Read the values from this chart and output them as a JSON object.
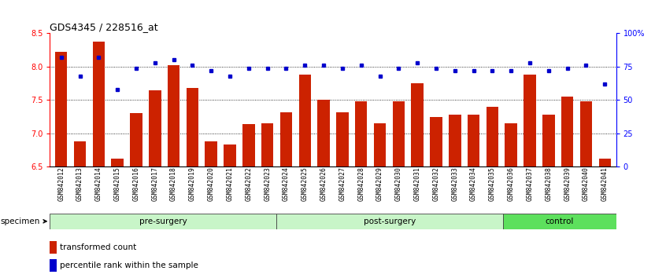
{
  "title": "GDS4345 / 228516_at",
  "samples": [
    "GSM842012",
    "GSM842013",
    "GSM842014",
    "GSM842015",
    "GSM842016",
    "GSM842017",
    "GSM842018",
    "GSM842019",
    "GSM842020",
    "GSM842021",
    "GSM842022",
    "GSM842023",
    "GSM842024",
    "GSM842025",
    "GSM842026",
    "GSM842027",
    "GSM842028",
    "GSM842029",
    "GSM842030",
    "GSM842031",
    "GSM842032",
    "GSM842033",
    "GSM842034",
    "GSM842035",
    "GSM842036",
    "GSM842037",
    "GSM842038",
    "GSM842039",
    "GSM842040",
    "GSM842041"
  ],
  "bar_values": [
    8.22,
    6.88,
    8.38,
    6.62,
    7.3,
    7.65,
    8.02,
    7.68,
    6.88,
    6.83,
    7.14,
    7.15,
    7.32,
    7.88,
    7.5,
    7.32,
    7.48,
    7.15,
    7.48,
    7.75,
    7.25,
    7.28,
    7.28,
    7.4,
    7.15,
    7.88,
    7.28,
    7.55,
    7.48,
    6.62
  ],
  "dot_values": [
    82,
    68,
    82,
    58,
    74,
    78,
    80,
    76,
    72,
    68,
    74,
    74,
    74,
    76,
    76,
    74,
    76,
    68,
    74,
    78,
    74,
    72,
    72,
    72,
    72,
    78,
    72,
    74,
    76,
    62
  ],
  "groups": [
    {
      "label": "pre-surgery",
      "start": 0,
      "end": 12
    },
    {
      "label": "post-surgery",
      "start": 12,
      "end": 24
    },
    {
      "label": "control",
      "start": 24,
      "end": 30
    }
  ],
  "group_colors": [
    "#c8f5c8",
    "#c8f5c8",
    "#5de05d"
  ],
  "bar_color": "#cc2200",
  "dot_color": "#0000cc",
  "ylim_left": [
    6.5,
    8.5
  ],
  "ylim_right": [
    0,
    100
  ],
  "yticks_left": [
    6.5,
    7.0,
    7.5,
    8.0,
    8.5
  ],
  "yticks_right": [
    0,
    25,
    50,
    75,
    100
  ],
  "ytick_labels_right": [
    "0",
    "25",
    "50",
    "75",
    "100%"
  ],
  "grid_values": [
    7.0,
    7.5,
    8.0
  ],
  "specimen_label": "specimen",
  "legend_bar_label": "transformed count",
  "legend_dot_label": "percentile rank within the sample",
  "bar_width": 0.65
}
